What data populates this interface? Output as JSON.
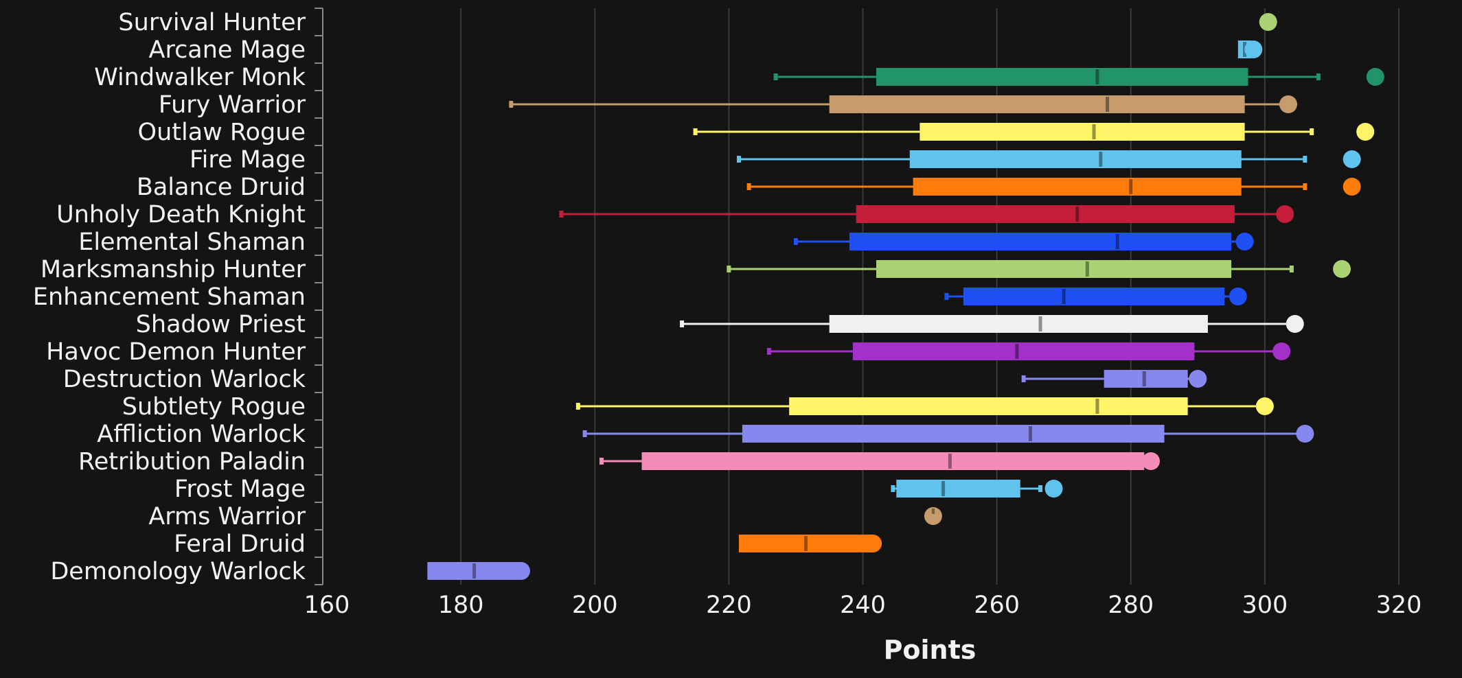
{
  "chart_data": {
    "type": "box",
    "title": "",
    "xlabel": "Points",
    "ylabel": "",
    "xlim": [
      160,
      324
    ],
    "xticks": [
      160,
      180,
      200,
      220,
      240,
      260,
      280,
      300,
      320
    ],
    "grid": true,
    "legend": "none",
    "colors": {
      "background": "#141414",
      "grid": "#3a3a3a",
      "axis": "#8a8a8a",
      "text": "#f2f2f2"
    },
    "categories": [
      "Survival Hunter",
      "Arcane Mage",
      "Windwalker Monk",
      "Fury Warrior",
      "Outlaw Rogue",
      "Fire Mage",
      "Balance Druid",
      "Unholy Death Knight",
      "Elemental Shaman",
      "Marksmanship Hunter",
      "Enhancement Shaman",
      "Shadow Priest",
      "Havoc Demon Hunter",
      "Destruction Warlock",
      "Subtlety Rogue",
      "Affliction Warlock",
      "Retribution Paladin",
      "Frost Mage",
      "Arms Warrior",
      "Feral Druid",
      "Demonology Warlock"
    ],
    "series": [
      {
        "name": "Survival Hunter",
        "color": "#a9d372",
        "min": null,
        "q1": null,
        "median": null,
        "q3": null,
        "max": null,
        "outlier": 300.5
      },
      {
        "name": "Arcane Mage",
        "color": "#5fc3ed",
        "min": null,
        "q1": 296.0,
        "median": 297.0,
        "q3": 298.0,
        "max": null,
        "outlier": 298.3
      },
      {
        "name": "Windwalker Monk",
        "color": "#21946a",
        "min": 227.0,
        "q1": 242.0,
        "median": 275.0,
        "q3": 297.5,
        "max": 308.0,
        "outlier": 316.5
      },
      {
        "name": "Fury Warrior",
        "color": "#c69b6d",
        "min": 187.5,
        "q1": 235.0,
        "median": 276.5,
        "q3": 297.0,
        "max": null,
        "outlier": 303.5
      },
      {
        "name": "Outlaw Rogue",
        "color": "#fff468",
        "min": 215.0,
        "q1": 248.5,
        "median": 274.5,
        "q3": 297.0,
        "max": 307.0,
        "outlier": 315.0
      },
      {
        "name": "Fire Mage",
        "color": "#5fc3ed",
        "min": 221.5,
        "q1": 247.0,
        "median": 275.5,
        "q3": 296.5,
        "max": 306.0,
        "outlier": 313.0
      },
      {
        "name": "Balance Druid",
        "color": "#ff7c0a",
        "min": 223.0,
        "q1": 247.5,
        "median": 280.0,
        "q3": 296.5,
        "max": 306.0,
        "outlier": 313.0
      },
      {
        "name": "Unholy Death Knight",
        "color": "#c41e3a",
        "min": 195.0,
        "q1": 239.0,
        "median": 272.0,
        "q3": 295.5,
        "max": null,
        "outlier": 303.0
      },
      {
        "name": "Elemental Shaman",
        "color": "#1f4ff5",
        "min": 230.0,
        "q1": 238.0,
        "median": 278.0,
        "q3": 295.0,
        "max": null,
        "outlier": 297.0
      },
      {
        "name": "Marksmanship Hunter",
        "color": "#a9d372",
        "min": 220.0,
        "q1": 242.0,
        "median": 273.5,
        "q3": 295.0,
        "max": 304.0,
        "outlier": 311.5
      },
      {
        "name": "Enhancement Shaman",
        "color": "#1f4ff5",
        "min": 252.5,
        "q1": 255.0,
        "median": 270.0,
        "q3": 294.0,
        "max": null,
        "outlier": 296.0
      },
      {
        "name": "Shadow Priest",
        "color": "#f0f0f0",
        "min": 213.0,
        "q1": 235.0,
        "median": 266.5,
        "q3": 291.5,
        "max": null,
        "outlier": 304.5
      },
      {
        "name": "Havoc Demon Hunter",
        "color": "#a330c9",
        "min": 226.0,
        "q1": 238.5,
        "median": 263.0,
        "q3": 289.5,
        "max": null,
        "outlier": 302.5
      },
      {
        "name": "Destruction Warlock",
        "color": "#8788ee",
        "min": 264.0,
        "q1": 276.0,
        "median": 282.0,
        "q3": 288.5,
        "max": null,
        "outlier": 290.0
      },
      {
        "name": "Subtlety Rogue",
        "color": "#fff468",
        "min": 197.5,
        "q1": 229.0,
        "median": 275.0,
        "q3": 288.5,
        "max": null,
        "outlier": 300.0
      },
      {
        "name": "Affliction Warlock",
        "color": "#8788ee",
        "min": 198.5,
        "q1": 222.0,
        "median": 265.0,
        "q3": 285.0,
        "max": null,
        "outlier": 306.0
      },
      {
        "name": "Retribution Paladin",
        "color": "#f48cba",
        "min": 201.0,
        "q1": 207.0,
        "median": 253.0,
        "q3": 282.0,
        "max": null,
        "outlier": 283.0
      },
      {
        "name": "Frost Mage",
        "color": "#5fc3ed",
        "min": 244.5,
        "q1": 245.0,
        "median": 252.0,
        "q3": 263.5,
        "max": 266.5,
        "outlier": 268.5
      },
      {
        "name": "Arms Warrior",
        "color": "#c69b6d",
        "min": null,
        "q1": null,
        "median": 250.5,
        "q3": null,
        "max": null,
        "outlier": 250.5
      },
      {
        "name": "Feral Druid",
        "color": "#ff7c0a",
        "min": null,
        "q1": 221.5,
        "median": 231.5,
        "q3": 241.5,
        "max": null,
        "outlier": 241.5
      },
      {
        "name": "Demonology Warlock",
        "color": "#8788ee",
        "min": null,
        "q1": 175.0,
        "median": 182.0,
        "q3": 189.0,
        "max": null,
        "outlier": 189.0
      }
    ]
  }
}
